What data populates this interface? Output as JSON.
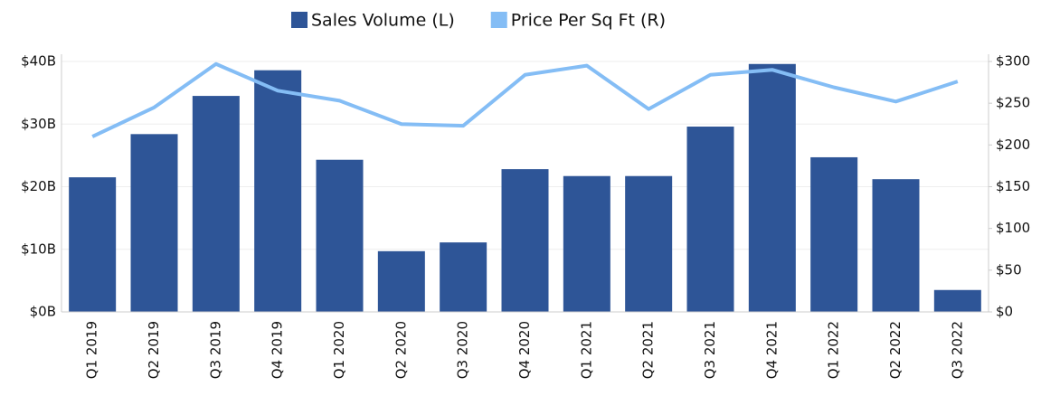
{
  "chart_data": {
    "type": "bar_line",
    "categories": [
      "Q1 2019",
      "Q2 2019",
      "Q3 2019",
      "Q4 2019",
      "Q1 2020",
      "Q2 2020",
      "Q3 2020",
      "Q4 2020",
      "Q1 2021",
      "Q2 2021",
      "Q3 2021",
      "Q4 2021",
      "Q1 2022",
      "Q2 2022",
      "Q3 2022"
    ],
    "series": [
      {
        "name": "Sales Volume (L)",
        "color": "#2e5597",
        "type": "bar",
        "values": [
          21.5,
          28.4,
          34.5,
          38.6,
          24.3,
          9.7,
          11.1,
          22.8,
          21.7,
          21.7,
          29.6,
          39.6,
          24.7,
          21.2,
          3.5
        ]
      },
      {
        "name": "Price Per Sq Ft (R)",
        "color": "#84bdf5",
        "type": "line",
        "axis": "y2",
        "values": [
          210,
          245,
          297,
          265,
          253,
          225,
          223,
          284,
          295,
          243,
          284,
          290,
          269,
          252,
          276
        ]
      }
    ],
    "ylim": [
      0,
      40
    ],
    "yticks": [
      {
        "value": 0,
        "label": "$0B"
      },
      {
        "value": 10,
        "label": "$10B"
      },
      {
        "value": 20,
        "label": "$20B"
      },
      {
        "value": 30,
        "label": "$30B"
      },
      {
        "value": 40,
        "label": "$40B"
      }
    ],
    "y2lim": [
      0,
      300
    ],
    "y2ticks": [
      {
        "value": 0,
        "label": "$0"
      },
      {
        "value": 50,
        "label": "$50"
      },
      {
        "value": 100,
        "label": "$100"
      },
      {
        "value": 150,
        "label": "$150"
      },
      {
        "value": 200,
        "label": "$200"
      },
      {
        "value": 250,
        "label": "$250"
      },
      {
        "value": 300,
        "label": "$300"
      }
    ],
    "grid": true,
    "legend": "top"
  }
}
